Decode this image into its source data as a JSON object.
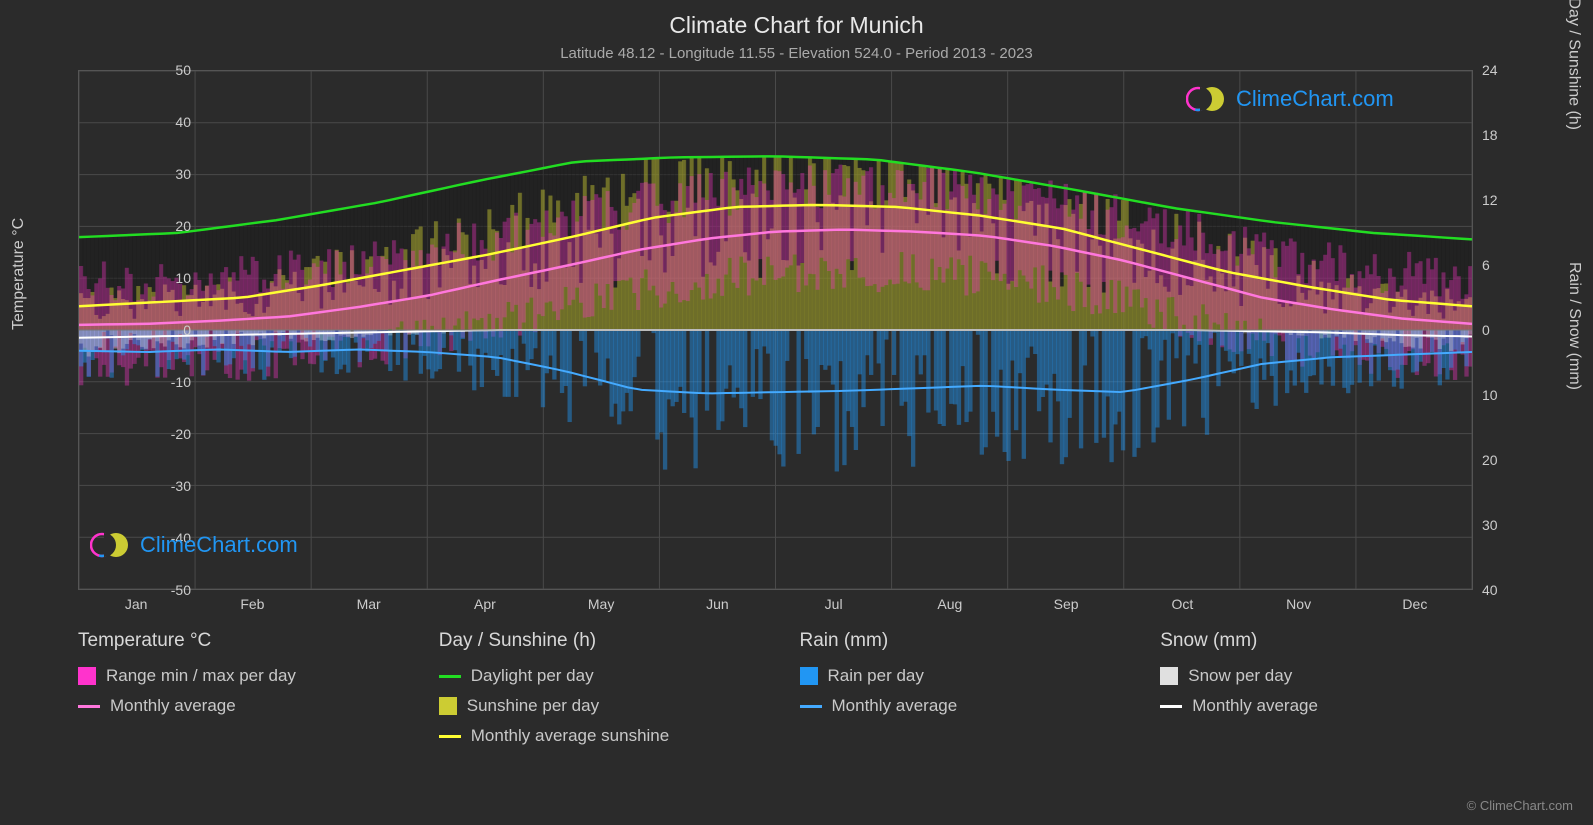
{
  "title": "Climate Chart for Munich",
  "subtitle": "Latitude 48.12 - Longitude 11.55 - Elevation 524.0 - Period 2013 - 2023",
  "background_color": "#2b2b2b",
  "grid_color": "#4a4a4a",
  "text_color": "#d0d0d0",
  "axis_left": {
    "label": "Temperature °C",
    "min": -50,
    "max": 50,
    "step": 10,
    "ticks": [
      50,
      40,
      30,
      20,
      10,
      0,
      -10,
      -20,
      -30,
      -40,
      -50
    ]
  },
  "axis_right_top": {
    "label": "Day / Sunshine (h)",
    "min": 0,
    "max": 24,
    "step": 6,
    "ticks": [
      24,
      18,
      12,
      6,
      0
    ]
  },
  "axis_right_bottom": {
    "label": "Rain / Snow (mm)",
    "min": 0,
    "max": 40,
    "step": 10,
    "ticks": [
      0,
      10,
      20,
      30,
      40
    ]
  },
  "months": [
    "Jan",
    "Feb",
    "Mar",
    "Apr",
    "May",
    "Jun",
    "Jul",
    "Aug",
    "Sep",
    "Oct",
    "Nov",
    "Dec"
  ],
  "colors": {
    "temp_range": "#ff33cc",
    "temp_avg_line": "#ff77dd",
    "daylight_line": "#22dd22",
    "sunshine_bar": "#cccc33",
    "sunshine_avg_line": "#ffff33",
    "rain_bar": "#2196f3",
    "rain_avg_line": "#44aaff",
    "snow_bar": "#e0e0e0",
    "snow_avg_line": "#ffffff"
  },
  "lines": {
    "daylight_h": [
      8.6,
      9.0,
      10.2,
      11.8,
      13.8,
      15.6,
      16.0,
      16.1,
      15.8,
      14.6,
      13.0,
      11.3,
      10.0,
      9.0,
      8.4
    ],
    "sunshine_h": [
      2.2,
      2.6,
      3.0,
      4.2,
      5.6,
      7.0,
      8.6,
      10.4,
      11.4,
      11.6,
      11.4,
      10.6,
      9.4,
      7.4,
      5.4,
      4.0,
      2.8,
      2.2
    ],
    "temp_avg_c": [
      1.0,
      1.2,
      1.8,
      2.6,
      4.4,
      6.6,
      9.6,
      12.4,
      15.4,
      17.6,
      19.0,
      19.4,
      19.0,
      18.2,
      16.2,
      13.4,
      9.8,
      6.2,
      4.0,
      2.2,
      1.2
    ],
    "rain_avg_mm": [
      3.2,
      3.4,
      3.0,
      3.4,
      3.0,
      3.4,
      4.2,
      6.4,
      9.2,
      9.8,
      9.6,
      9.4,
      9.0,
      8.6,
      9.2,
      9.6,
      7.6,
      5.2,
      4.2,
      3.8,
      3.4
    ],
    "snow_avg_mm": [
      1.2,
      1.0,
      0.8,
      0.6,
      0.4,
      0.2,
      0.0,
      0.0,
      0.0,
      0.0,
      0.0,
      0.0,
      0.0,
      0.0,
      0.0,
      0.0,
      0.0,
      0.2,
      0.4,
      0.8,
      1.0
    ]
  },
  "legend": {
    "group1": {
      "heading": "Temperature °C",
      "item1": "Range min / max per day",
      "item2": "Monthly average"
    },
    "group2": {
      "heading": "Day / Sunshine (h)",
      "item1": "Daylight per day",
      "item2": "Sunshine per day",
      "item3": "Monthly average sunshine"
    },
    "group3": {
      "heading": "Rain (mm)",
      "item1": "Rain per day",
      "item2": "Monthly average"
    },
    "group4": {
      "heading": "Snow (mm)",
      "item1": "Snow per day",
      "item2": "Monthly average"
    }
  },
  "watermark_text": "ClimeChart.com",
  "copyright": "© ClimeChart.com"
}
